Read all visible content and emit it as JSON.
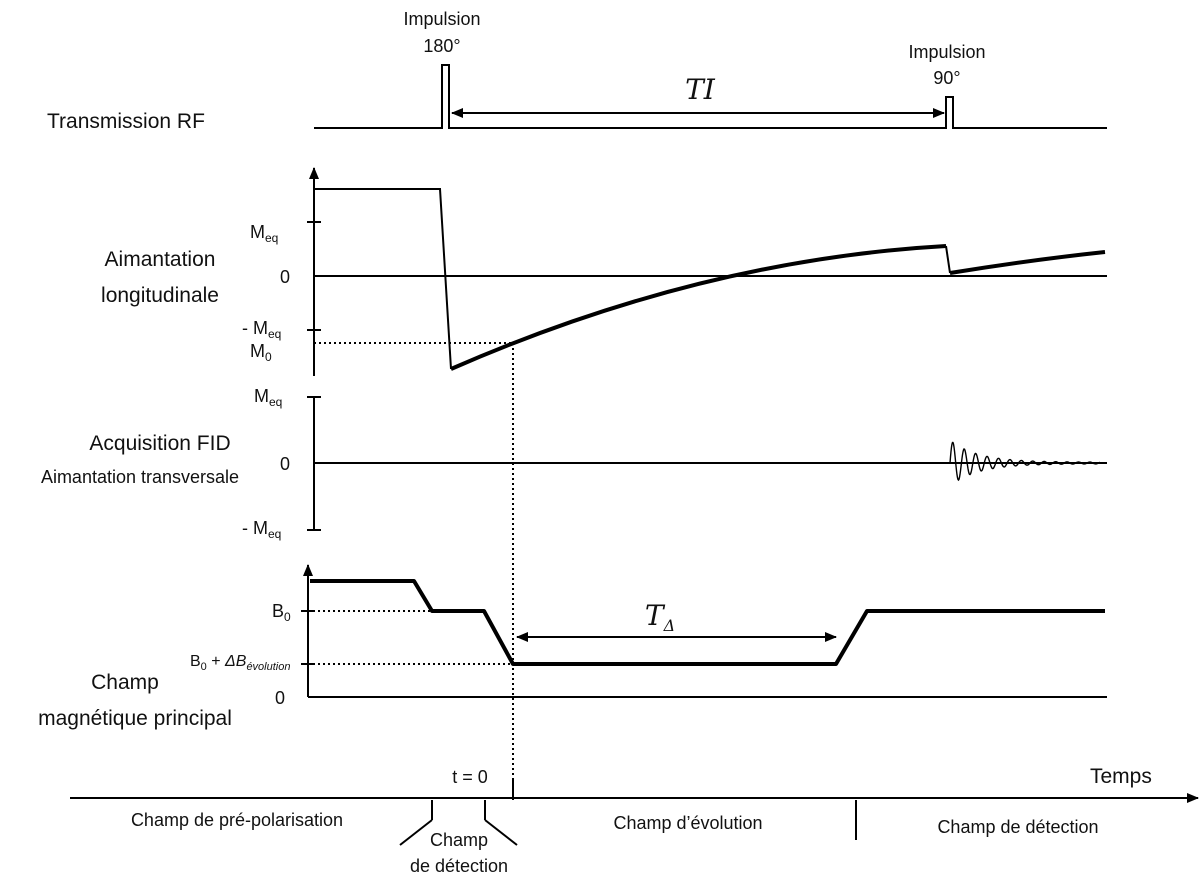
{
  "rf": {
    "label": "Transmission RF",
    "pulse180": {
      "line1": "Impulsion",
      "line2": "180°"
    },
    "pulse90": {
      "line1": "Impulsion",
      "line2": "90°"
    },
    "ti": "TI"
  },
  "longitudinal": {
    "label_line1": "Aimantation",
    "label_line2": "longitudinale",
    "meq": "M",
    "meq_sub": "eq",
    "zero": "0",
    "neg_meq": "- M",
    "neg_meq_sub": "eq",
    "m0": "M",
    "m0_sub": "0"
  },
  "fid": {
    "label_line1": "Acquisition FID",
    "label_line2": "Aimantation transversale",
    "meq": "M",
    "meq_sub": "eq",
    "zero": "0",
    "neg_meq": "- M",
    "neg_meq_sub": "eq"
  },
  "field": {
    "label_line1": "Champ",
    "label_line2": "magnétique principal",
    "b0": "B",
    "b0_sub": "0",
    "b0_delta": "B",
    "b0_delta_sub": "0",
    "b0_delta_plus": " + ",
    "delta_b": "ΔB",
    "delta_b_sub": "évolution",
    "zero": "0",
    "t_delta": "T",
    "t_delta_sub": "Δ"
  },
  "time": {
    "t0": "t = 0",
    "axis": "Temps",
    "phase_prepol": "Champ de pré-polarisation",
    "phase_detect1_line1": "Champ",
    "phase_detect1_line2": "de détection",
    "phase_evolution": "Champ d’évolution",
    "phase_detect2": "Champ de détection"
  }
}
